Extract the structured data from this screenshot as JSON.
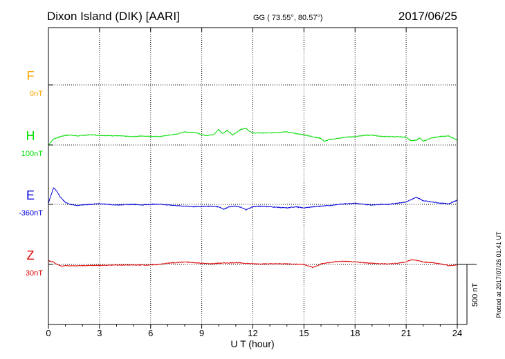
{
  "header": {
    "station": "Dixon Island (DIK)  [AARI]",
    "coords": "GG ( 73.55°,  80.57°)",
    "date": "2017/06/25",
    "plotted": "Plotted at 2017/07/26 01:41 UT"
  },
  "colors": {
    "F": "#ffa500",
    "H": "#00dd00",
    "E": "#0000dd",
    "Z": "#dd0000",
    "axis": "#000000"
  },
  "chart_data": {
    "type": "line",
    "title": "Dixon Island (DIK)  [AARI]",
    "xlabel": "U T (hour)",
    "ylabel": "",
    "xlim": [
      0,
      24
    ],
    "x_ticks": [
      "0",
      "3",
      "6",
      "9",
      "12",
      "15",
      "18",
      "21",
      "24"
    ],
    "grid": true,
    "scale_bar": {
      "label": "500 nT",
      "value_nT": 500
    },
    "channels": [
      {
        "name": "F",
        "baseline_label": "0nT"
      },
      {
        "name": "H",
        "baseline_label": "100nT"
      },
      {
        "name": "E",
        "baseline_label": "-360nT"
      },
      {
        "name": "Z",
        "baseline_label": "30nT"
      }
    ],
    "series": [
      {
        "name": "H",
        "unit": "nT",
        "x": [
          0,
          0.3,
          0.7,
          1,
          1.3,
          1.7,
          2,
          2.5,
          3,
          3.5,
          4,
          4.5,
          5,
          5.5,
          6,
          6.5,
          7,
          7.5,
          8,
          8.3,
          8.7,
          9,
          9.3,
          9.7,
          10,
          10.2,
          10.5,
          10.8,
          11,
          11.3,
          11.6,
          11.8,
          12,
          12.5,
          13,
          13.5,
          14,
          14.5,
          15,
          15.5,
          16,
          16.2,
          16.5,
          17,
          17.5,
          18,
          18.5,
          19,
          19.5,
          20,
          20.5,
          21,
          21.3,
          21.6,
          21.8,
          22,
          22.5,
          23,
          23.5,
          24
        ],
        "values": [
          0,
          50,
          70,
          80,
          83,
          75,
          80,
          85,
          80,
          78,
          77,
          73,
          70,
          75,
          72,
          70,
          80,
          90,
          110,
          105,
          102,
          85,
          80,
          85,
          130,
          95,
          120,
          85,
          100,
          130,
          140,
          115,
          100,
          100,
          100,
          105,
          110,
          95,
          85,
          70,
          55,
          30,
          45,
          55,
          65,
          70,
          80,
          82,
          72,
          70,
          68,
          65,
          35,
          40,
          60,
          30,
          60,
          70,
          75,
          40
        ]
      },
      {
        "name": "E",
        "unit": "nT",
        "x": [
          0,
          0.3,
          0.5,
          0.7,
          1,
          1.3,
          1.7,
          2,
          2.5,
          3,
          3.5,
          4,
          4.5,
          5,
          5.5,
          6,
          6.5,
          7,
          7.5,
          8,
          8.5,
          9,
          9.5,
          10,
          10.3,
          10.6,
          11,
          11.3,
          11.6,
          12,
          12.5,
          13,
          13.5,
          14,
          14.5,
          15,
          15.5,
          16,
          16.5,
          17,
          17.5,
          18,
          18.5,
          19,
          19.5,
          20,
          20.5,
          21,
          21.3,
          21.6,
          22,
          22.5,
          23,
          23.5,
          24
        ],
        "values": [
          10,
          140,
          110,
          60,
          15,
          0,
          -10,
          -5,
          0,
          5,
          0,
          -5,
          -2,
          0,
          -5,
          0,
          2,
          -5,
          -10,
          -15,
          -20,
          -18,
          -15,
          -20,
          -40,
          -20,
          -15,
          -25,
          -45,
          -20,
          -15,
          -20,
          -25,
          -30,
          -20,
          -30,
          -20,
          -15,
          -10,
          0,
          5,
          10,
          0,
          -5,
          0,
          0,
          10,
          20,
          40,
          60,
          30,
          20,
          10,
          5,
          35
        ]
      },
      {
        "name": "Z",
        "unit": "nT",
        "x": [
          0,
          0.3,
          0.5,
          0.8,
          1,
          1.5,
          2,
          3,
          4,
          5,
          6,
          6.5,
          7,
          7.5,
          8,
          8.5,
          9,
          9.5,
          10,
          10.5,
          11,
          11.5,
          12,
          13,
          14,
          15,
          15.5,
          15.8,
          16,
          16.5,
          17,
          17.5,
          18,
          18.5,
          19,
          19.5,
          20,
          20.5,
          21,
          21.3,
          21.6,
          22,
          22.5,
          23,
          23.5,
          24
        ],
        "values": [
          30,
          20,
          0,
          -15,
          -10,
          -12,
          -10,
          -8,
          -5,
          -5,
          -5,
          0,
          10,
          15,
          20,
          15,
          10,
          5,
          10,
          12,
          15,
          10,
          5,
          5,
          5,
          0,
          -25,
          -10,
          5,
          15,
          25,
          25,
          20,
          15,
          10,
          5,
          5,
          10,
          20,
          40,
          35,
          20,
          15,
          5,
          -10,
          -5
        ]
      }
    ]
  }
}
